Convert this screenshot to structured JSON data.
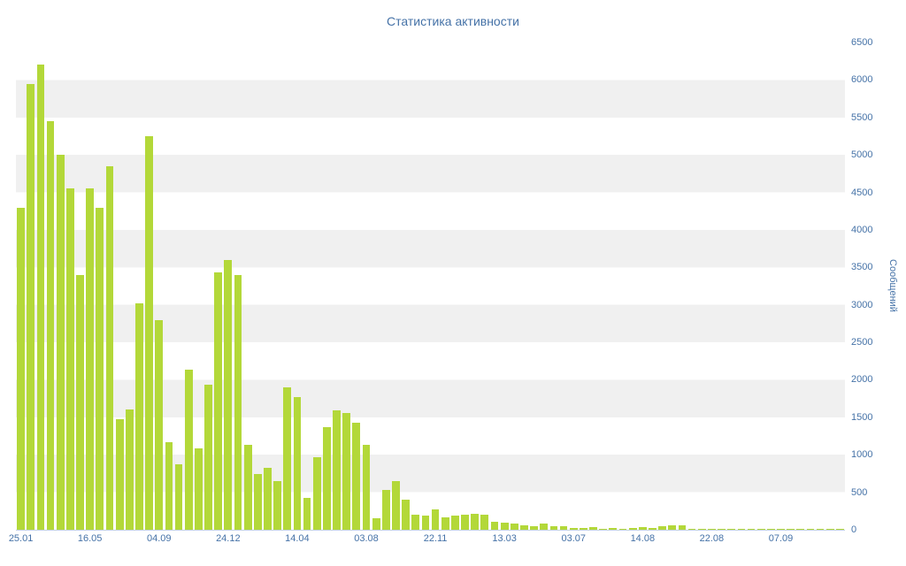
{
  "chart_data": {
    "type": "bar",
    "title": "Статистика активности",
    "xlabel": "",
    "ylabel": "Сообщений",
    "ylim": [
      0,
      6500
    ],
    "y_tick_step": 500,
    "y_ticks": [
      0,
      500,
      1000,
      1500,
      2000,
      2500,
      3000,
      3500,
      4000,
      4500,
      5000,
      5500,
      6000,
      6500
    ],
    "x_tick_labels": [
      {
        "index": 0,
        "label": "25.01"
      },
      {
        "index": 7,
        "label": "16.05"
      },
      {
        "index": 14,
        "label": "04.09"
      },
      {
        "index": 21,
        "label": "24.12"
      },
      {
        "index": 28,
        "label": "14.04"
      },
      {
        "index": 35,
        "label": "03.08"
      },
      {
        "index": 42,
        "label": "22.11"
      },
      {
        "index": 49,
        "label": "13.03"
      },
      {
        "index": 56,
        "label": "03.07"
      },
      {
        "index": 63,
        "label": "14.08"
      },
      {
        "index": 70,
        "label": "22.08"
      },
      {
        "index": 77,
        "label": "07.09"
      }
    ],
    "values": [
      4300,
      5950,
      6200,
      5450,
      5000,
      4550,
      3400,
      4550,
      4300,
      4850,
      1475,
      1600,
      3025,
      5250,
      2800,
      1170,
      870,
      2140,
      1090,
      1940,
      3430,
      3600,
      3400,
      1130,
      740,
      830,
      650,
      1900,
      1775,
      430,
      970,
      1370,
      1590,
      1560,
      1430,
      1130,
      150,
      530,
      650,
      400,
      200,
      190,
      270,
      165,
      190,
      200,
      215,
      200,
      105,
      95,
      85,
      60,
      45,
      80,
      45,
      50,
      25,
      25,
      30,
      15,
      20,
      15,
      20,
      30,
      20,
      50,
      55,
      65,
      15,
      10,
      15,
      10,
      15,
      10,
      10,
      15,
      10,
      15,
      10,
      10,
      15,
      10,
      10,
      15
    ],
    "legend": "none",
    "grid": "alternating-bands",
    "colors": {
      "bar": "#B3D839",
      "band": "#F0F0F0",
      "background": "#FFFFFF",
      "text": "#4572A7",
      "axis_line": "#C0D0E0"
    }
  }
}
